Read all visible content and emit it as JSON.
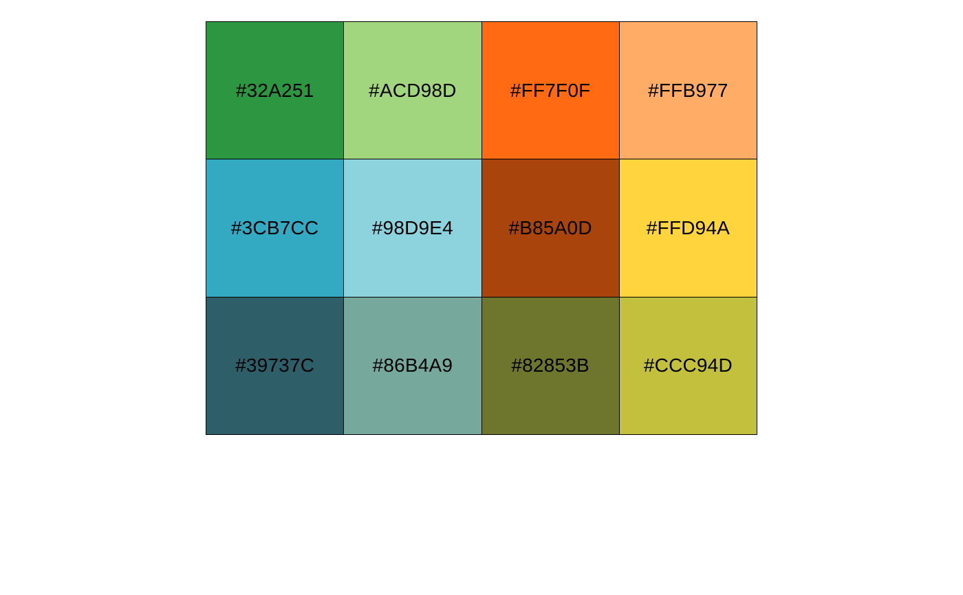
{
  "palette": {
    "swatches": [
      {
        "label": "#32A251",
        "color": "#2C9640"
      },
      {
        "label": "#ACD98D",
        "color": "#A2D67E"
      },
      {
        "label": "#FF7F0F",
        "color": "#FF6A12"
      },
      {
        "label": "#FFB977",
        "color": "#FFAC67"
      },
      {
        "label": "#3CB7CC",
        "color": "#33A9C2"
      },
      {
        "label": "#98D9E4",
        "color": "#8CD3DD"
      },
      {
        "label": "#B85A0D",
        "color": "#A8440C"
      },
      {
        "label": "#FFD94A",
        "color": "#FFD43C"
      },
      {
        "label": "#39737C",
        "color": "#2E5F69"
      },
      {
        "label": "#86B4A9",
        "color": "#76A89B"
      },
      {
        "label": "#82853B",
        "color": "#6E752D"
      },
      {
        "label": "#CCC94D",
        "color": "#C2C03D"
      }
    ]
  }
}
